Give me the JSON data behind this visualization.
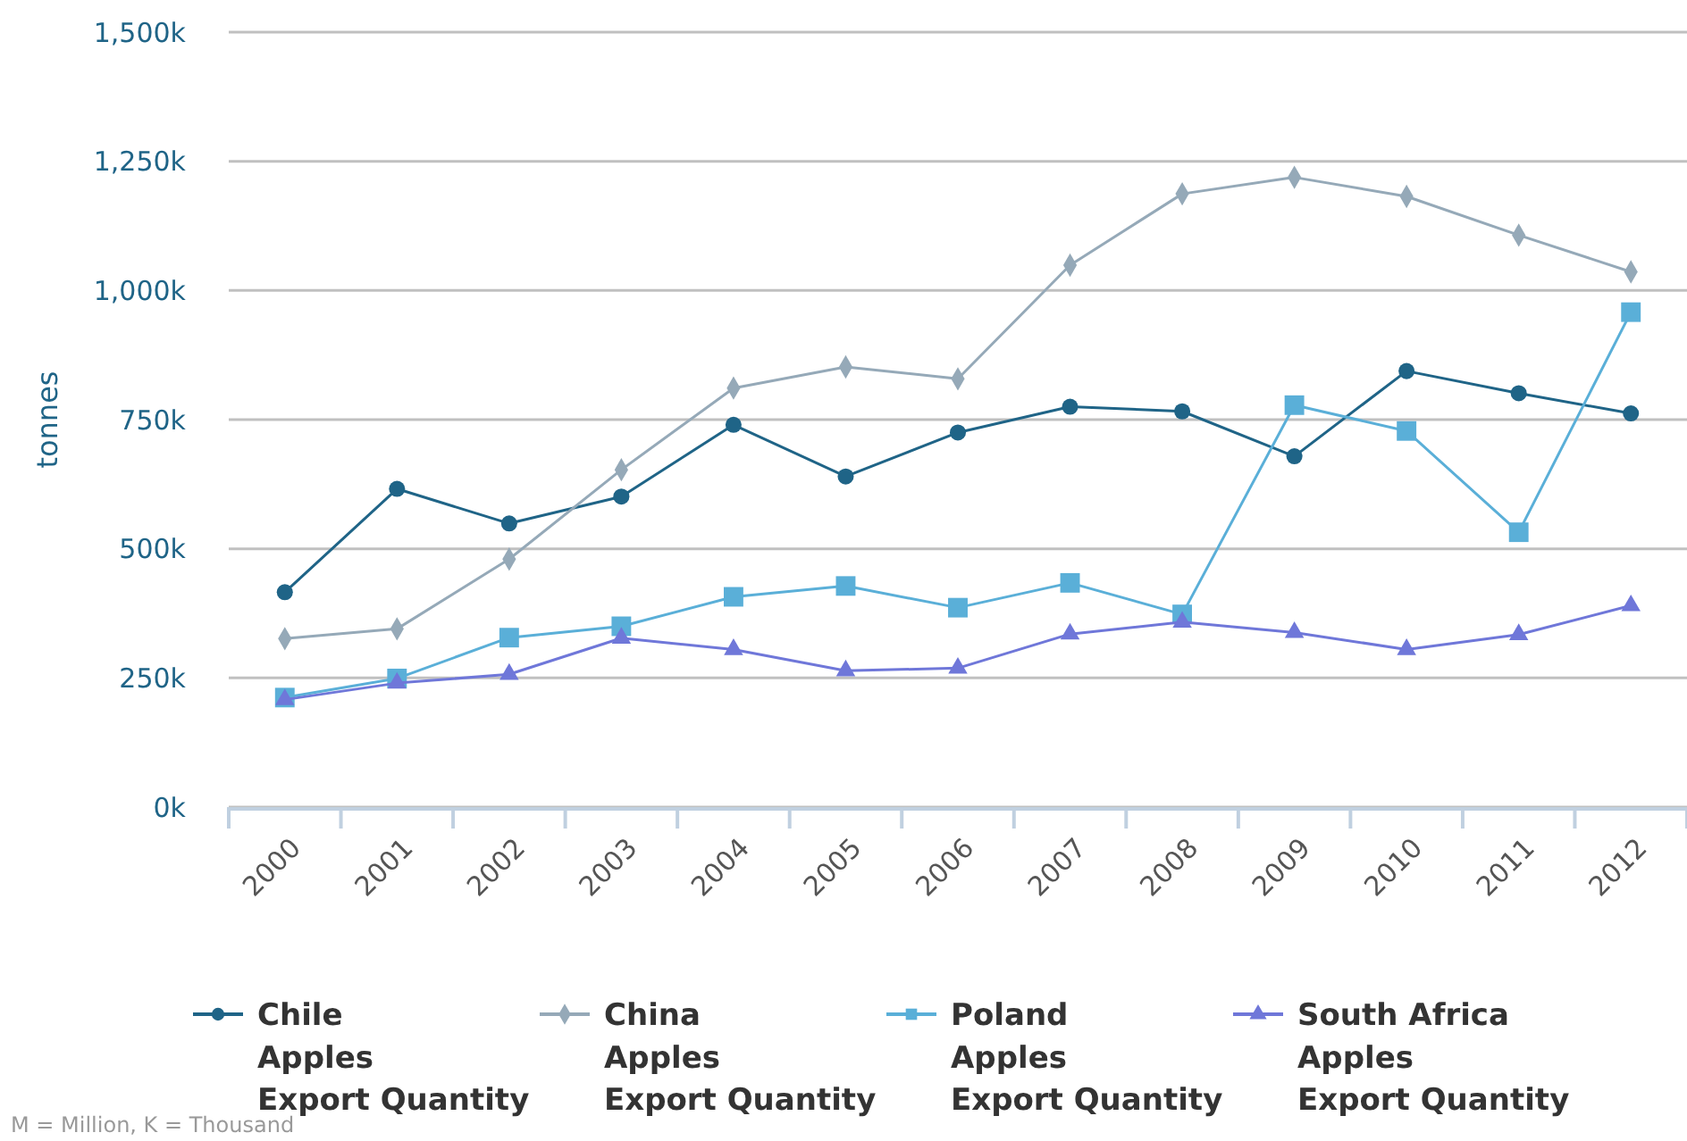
{
  "chart_data": {
    "type": "line",
    "ylabel": "tonnes",
    "categories": [
      "2000",
      "2001",
      "2002",
      "2003",
      "2004",
      "2005",
      "2006",
      "2007",
      "2008",
      "2009",
      "2010",
      "2011",
      "2012"
    ],
    "ylim": [
      0,
      1500000
    ],
    "yticks": [
      {
        "value": 0,
        "label": "0k"
      },
      {
        "value": 250000,
        "label": "250k"
      },
      {
        "value": 500000,
        "label": "500k"
      },
      {
        "value": 750000,
        "label": "750k"
      },
      {
        "value": 1000000,
        "label": "1,000k"
      },
      {
        "value": 1250000,
        "label": "1,250k"
      },
      {
        "value": 1500000,
        "label": "1,500k"
      }
    ],
    "grid": "y",
    "legend": "bottom",
    "series": [
      {
        "name": "Chile\nApples\nExport Quantity",
        "color": "#1f6487",
        "marker": "circle",
        "values": [
          416000,
          616000,
          549000,
          601000,
          740000,
          640000,
          725000,
          775000,
          766000,
          679000,
          844000,
          801000,
          762000
        ]
      },
      {
        "name": "China\nApples\nExport Quantity",
        "color": "#95a9b8",
        "marker": "diamond",
        "values": [
          326000,
          345000,
          480000,
          653000,
          811000,
          852000,
          829000,
          1049000,
          1187000,
          1219000,
          1182000,
          1107000,
          1036000
        ]
      },
      {
        "name": "Poland\nApples\nExport Quantity",
        "color": "#5aafd8",
        "marker": "square",
        "values": [
          212000,
          249000,
          328000,
          350000,
          407000,
          428000,
          386000,
          434000,
          373000,
          778000,
          728000,
          532000,
          958000
        ]
      },
      {
        "name": "South Africa\nApples\nExport Quantity",
        "color": "#6f77d9",
        "marker": "triangle",
        "values": [
          208000,
          240000,
          257000,
          327000,
          305000,
          264000,
          269000,
          335000,
          358000,
          338000,
          305000,
          334000,
          390000
        ]
      }
    ],
    "annotations": [
      "M = Million, K = Thousand"
    ]
  }
}
